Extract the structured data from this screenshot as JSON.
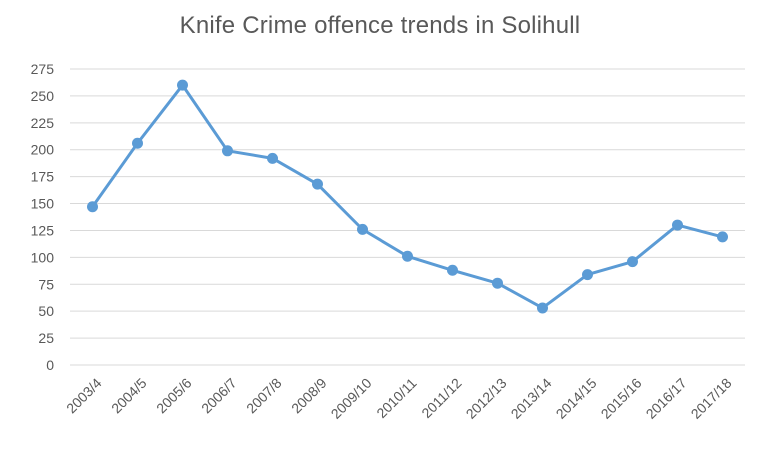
{
  "chart_data": {
    "type": "line",
    "title": "Knife Crime offence trends in Solihull",
    "xlabel": "",
    "ylabel": "",
    "categories": [
      "2003/4",
      "2004/5",
      "2005/6",
      "2006/7",
      "2007/8",
      "2008/9",
      "2009/10",
      "2010/11",
      "2011/12",
      "2012/13",
      "2013/14",
      "2014/15",
      "2015/16",
      "2016/17",
      "2017/18"
    ],
    "series": [
      {
        "name": "",
        "values": [
          147,
          206,
          260,
          199,
          192,
          168,
          126,
          101,
          88,
          76,
          53,
          84,
          96,
          130,
          119
        ]
      }
    ],
    "ylim": [
      0,
      275
    ],
    "yticks": [
      0,
      25,
      50,
      75,
      100,
      125,
      150,
      175,
      200,
      225,
      250,
      275
    ],
    "grid": true,
    "legend": "none",
    "colors": {
      "series": "#5b9bd5",
      "grid": "#d9d9d9",
      "text": "#595959"
    }
  }
}
